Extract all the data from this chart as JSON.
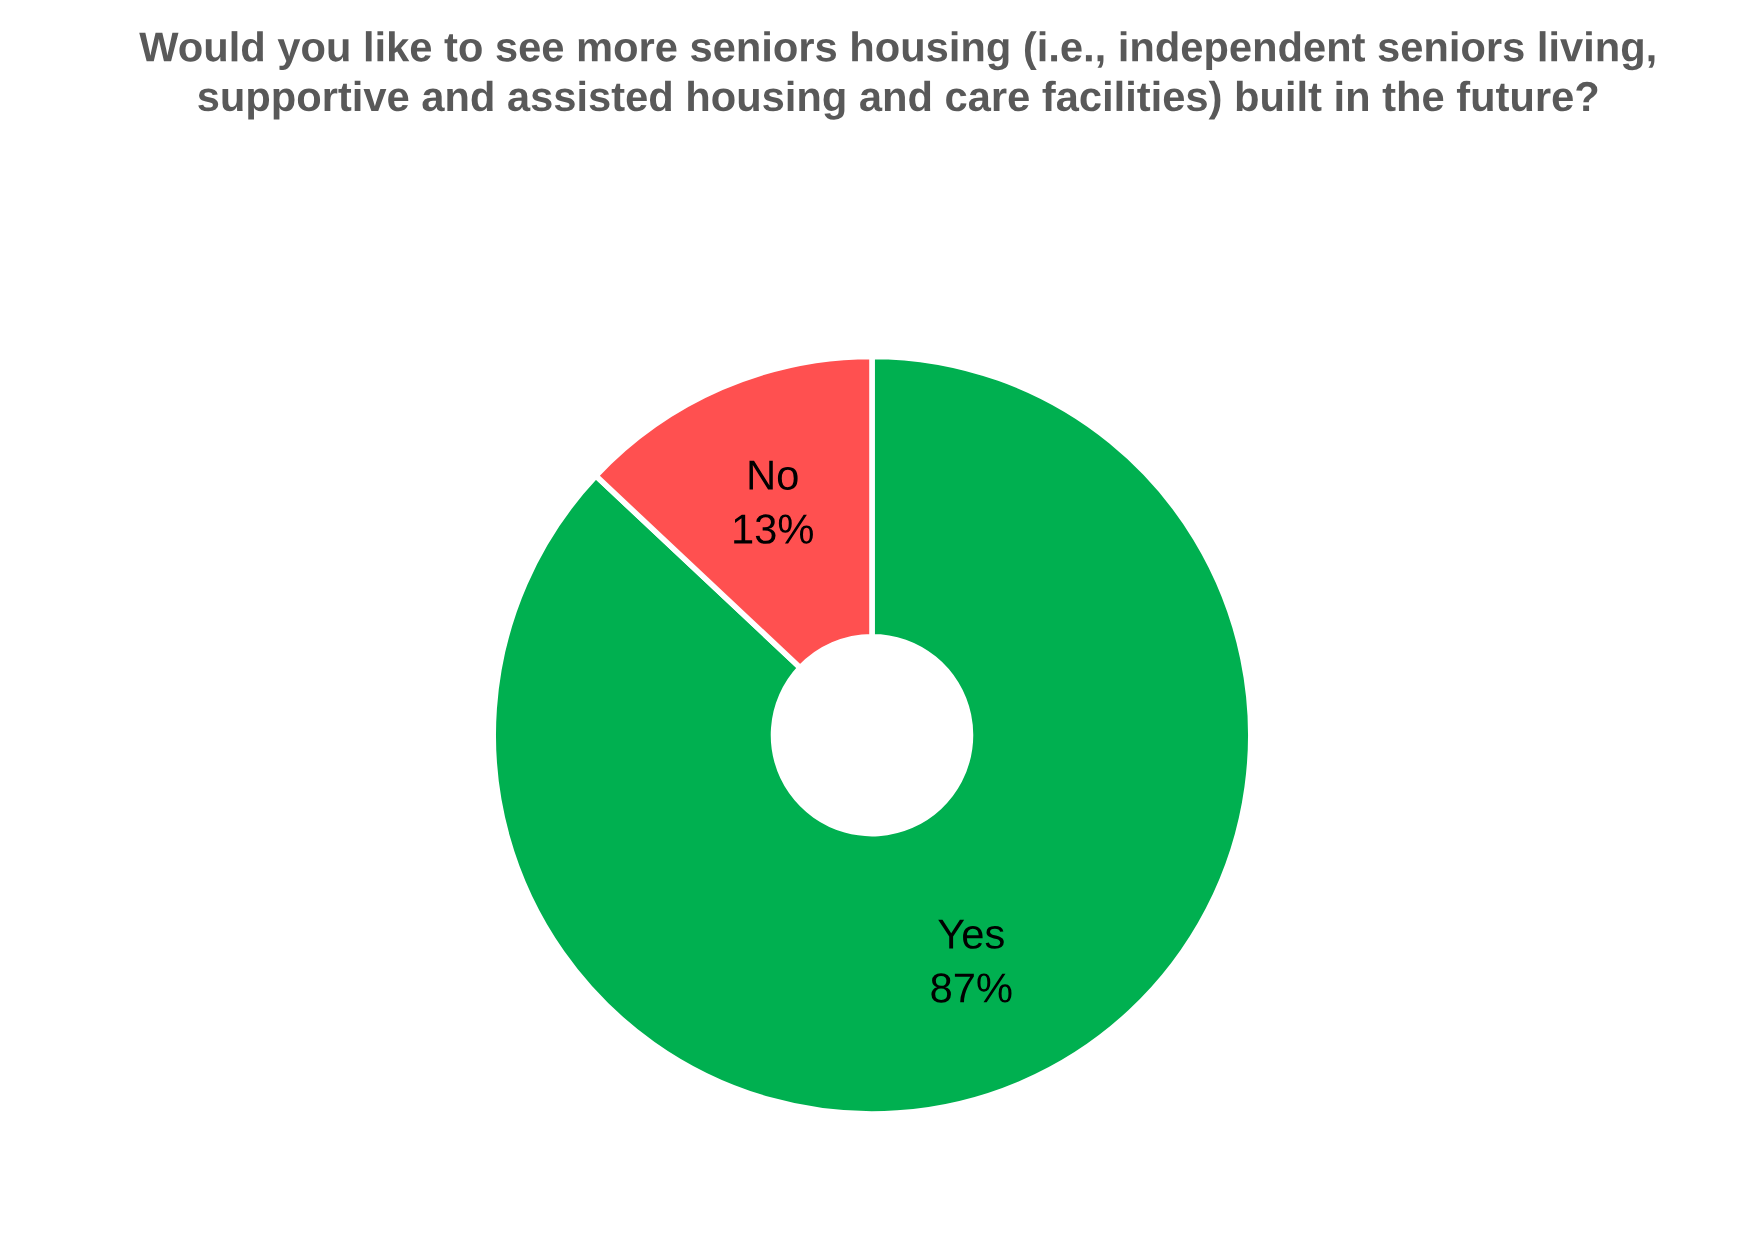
{
  "chart_data": {
    "type": "donut",
    "title": "Would you like to see more seniors housing (i.e., independent seniors living, supportive and assisted housing and care facilities) built in the future?",
    "categories": [
      "Yes",
      "No"
    ],
    "values": [
      87,
      13
    ],
    "value_labels": [
      "87%",
      "13%"
    ],
    "colors": [
      "#00b050",
      "#ff5050"
    ],
    "legend": false
  }
}
